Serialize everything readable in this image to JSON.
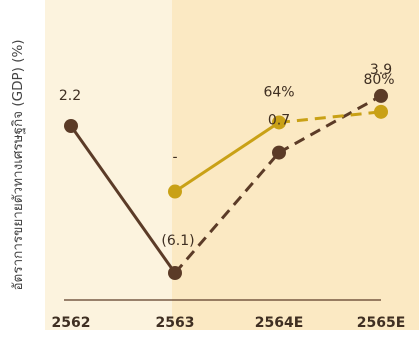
{
  "colors": {
    "panel_left": "#fcf3de",
    "panel_right": "#fbe9c3",
    "brown": "#5b3b27",
    "gold": "#c9a116",
    "axis": "#5b3b27",
    "text": "#3f2f22"
  },
  "chart_data": {
    "type": "line",
    "title": "",
    "xlabel": "",
    "ylabel": "อัตราการขยายตัวทางเศรษฐกิจ (GDP) (%)",
    "categories": [
      "2562",
      "2563",
      "2564E",
      "2565E"
    ],
    "series": [
      {
        "values": [
          2.2,
          -6.1,
          0.7,
          3.9
        ],
        "labels": [
          "2.2",
          "(6.1)",
          "0.7",
          "3.9"
        ]
      },
      {
        "values": [
          null,
          -1.5,
          2.4,
          3.0
        ],
        "labels": [
          "",
          "-",
          "64%",
          "80%"
        ]
      }
    ]
  }
}
